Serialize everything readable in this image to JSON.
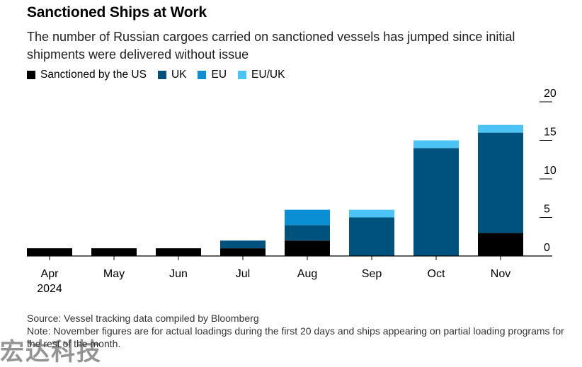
{
  "title": "Sanctioned Ships at Work",
  "subtitle": "The number of Russian cargoes carried on sanctioned vessels has jumped since initial shipments were delivered without issue",
  "chart_data": {
    "type": "bar",
    "stacked": true,
    "categories": [
      "Apr",
      "May",
      "Jun",
      "Jul",
      "Aug",
      "Sep",
      "Oct",
      "Nov"
    ],
    "category_sublabels": [
      "2024",
      "",
      "",
      "",
      "",
      "",
      "",
      ""
    ],
    "series": [
      {
        "name": "Sanctioned by the US",
        "color": "#000000",
        "values": [
          1,
          1,
          1,
          1,
          2,
          0,
          0,
          3
        ]
      },
      {
        "name": "UK",
        "color": "#00527e",
        "values": [
          0,
          0,
          0,
          1,
          2,
          5,
          14,
          13
        ]
      },
      {
        "name": "EU",
        "color": "#0a8fd4",
        "values": [
          0,
          0,
          0,
          0,
          2,
          0,
          0,
          0
        ]
      },
      {
        "name": "EU/UK",
        "color": "#4cc3f5",
        "values": [
          0,
          0,
          0,
          0,
          0,
          1,
          1,
          1
        ]
      }
    ],
    "yticks": [
      0,
      5,
      10,
      15,
      20
    ],
    "ylim": [
      0,
      20
    ],
    "y_axis_side": "right",
    "legend_position": "top-left",
    "grid": false
  },
  "footer": {
    "source": "Source: Vessel tracking data compiled by Bloomberg",
    "note": "Note: November figures are for actual loadings during the first 20 days and ships appearing on partial loading programs for the rest of the month."
  },
  "watermark": "宏达科技"
}
